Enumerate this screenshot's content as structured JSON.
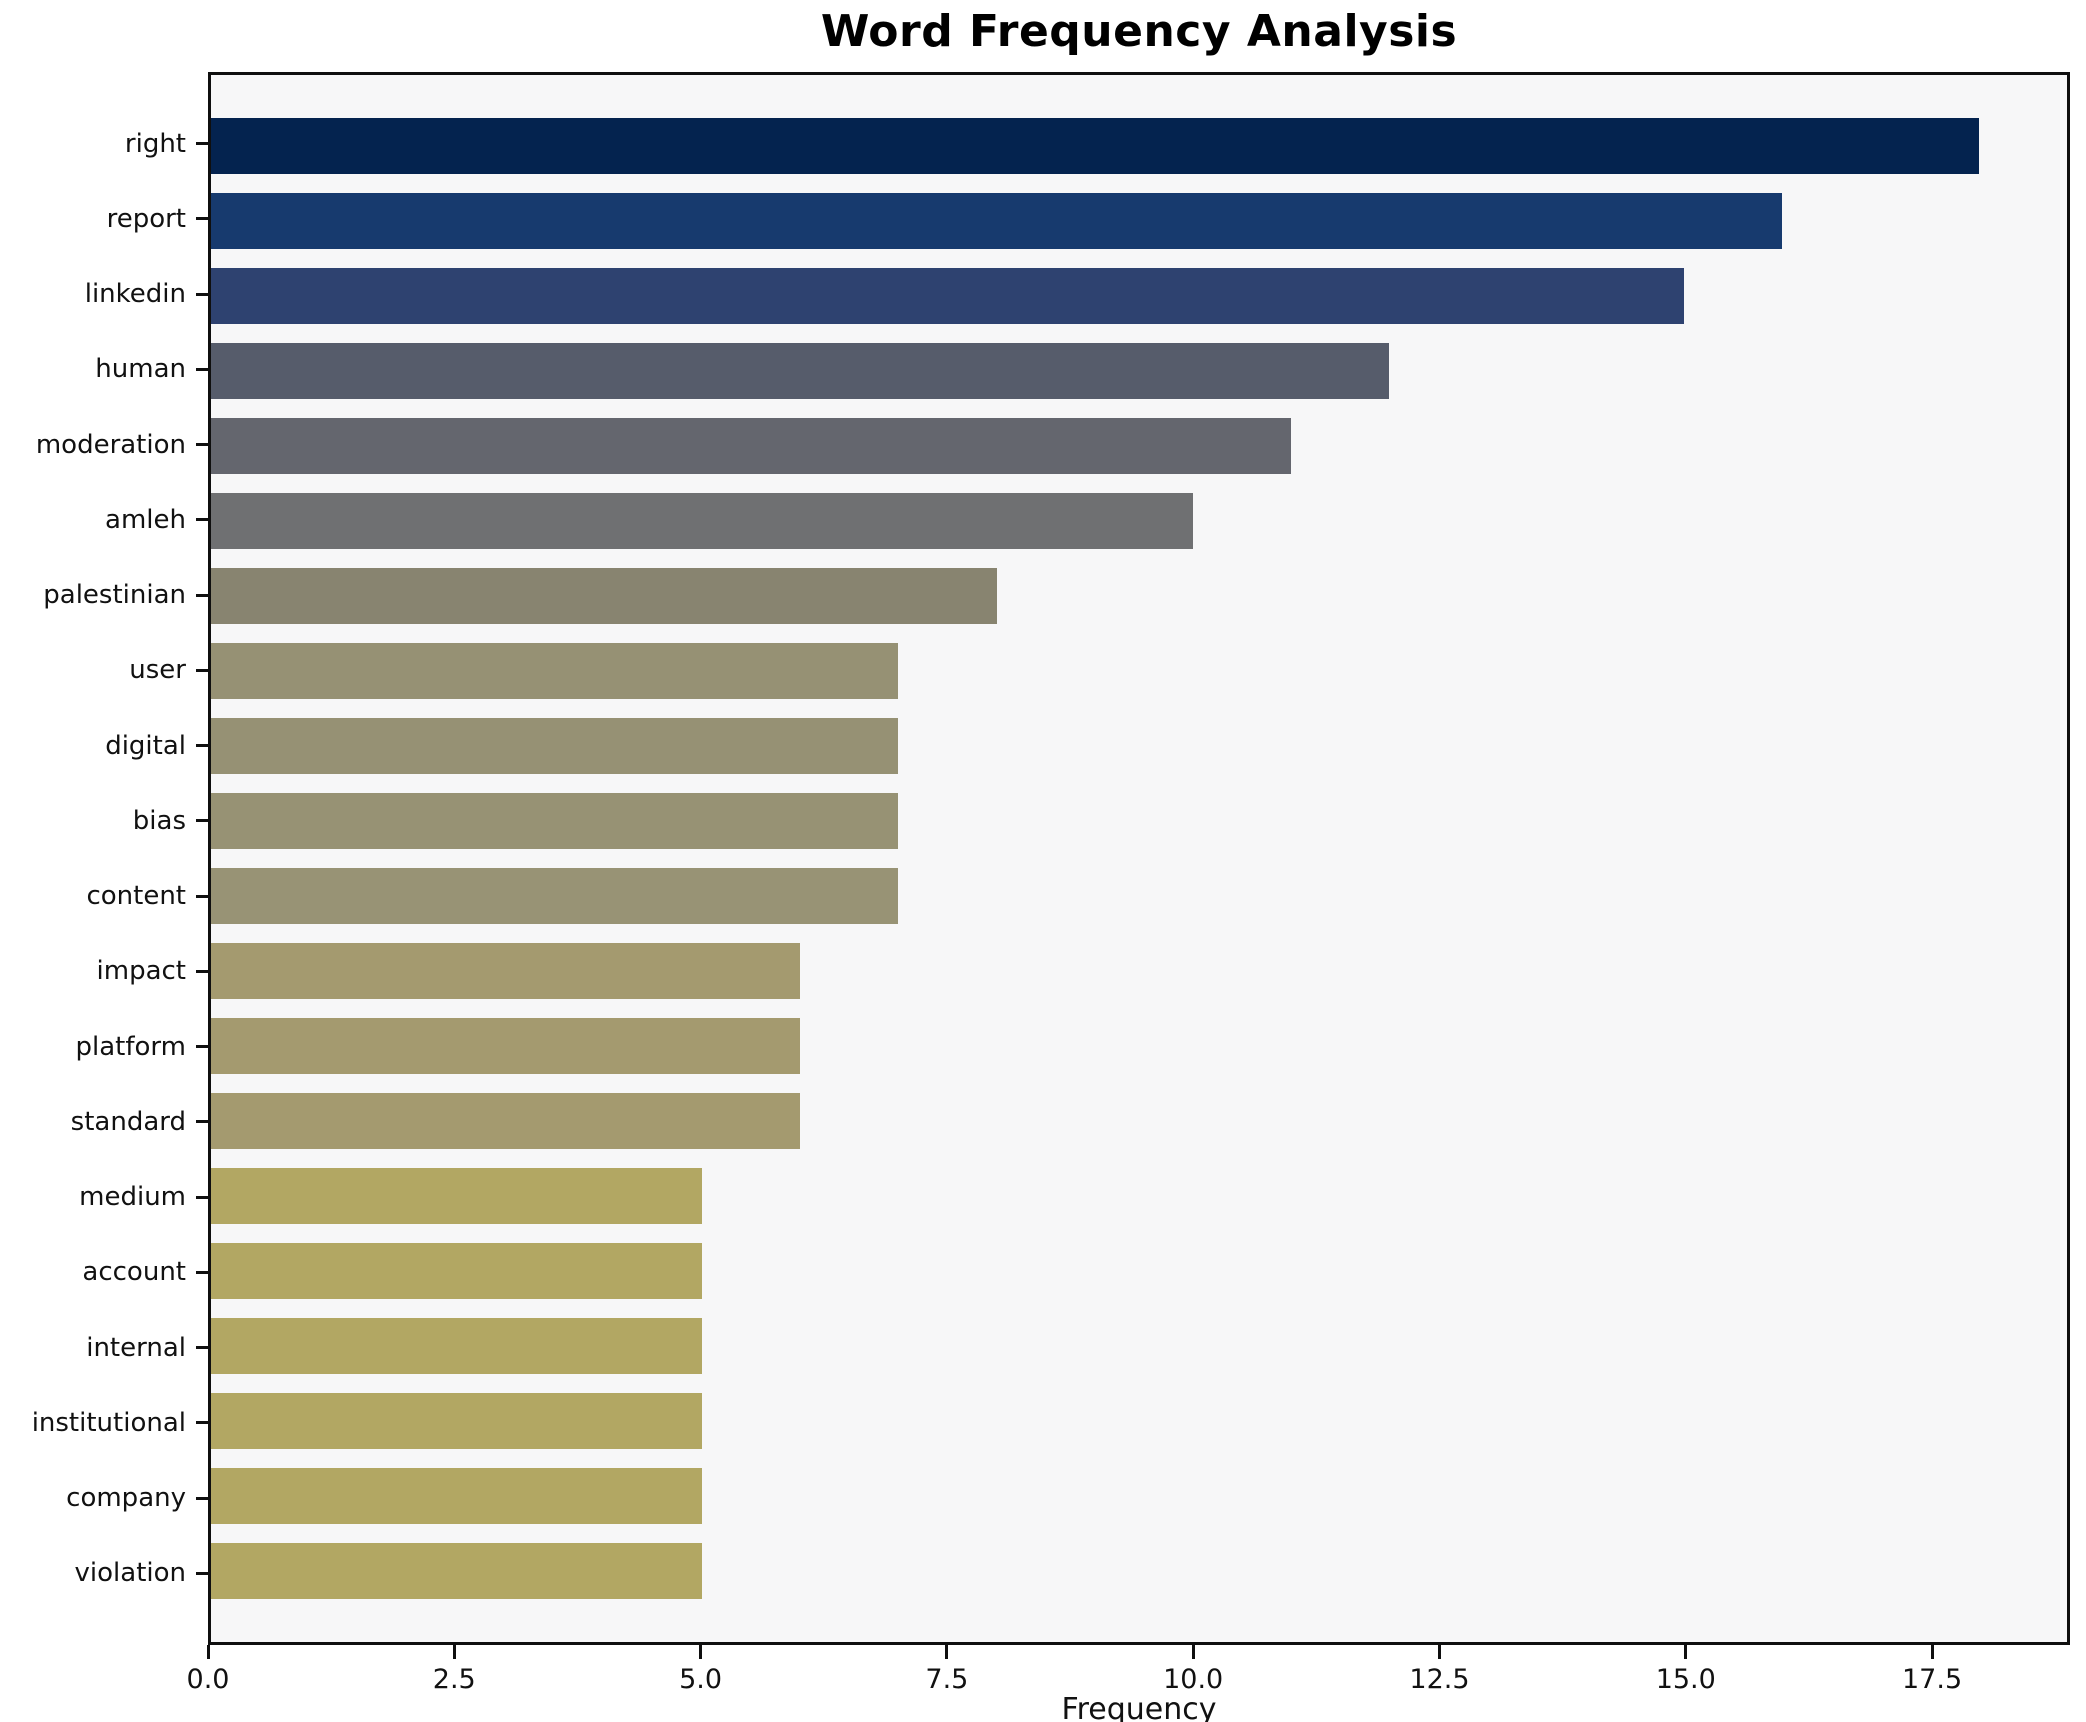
{
  "chart_data": {
    "type": "bar",
    "orientation": "horizontal",
    "title": "Word Frequency Analysis",
    "xlabel": "Frequency",
    "ylabel": "",
    "grid": false,
    "legend": null,
    "xlim": [
      0,
      18.9
    ],
    "x_ticks": [
      {
        "value": 0,
        "label": "0.0"
      },
      {
        "value": 2.5,
        "label": "2.5"
      },
      {
        "value": 5,
        "label": "5.0"
      },
      {
        "value": 7.5,
        "label": "7.5"
      },
      {
        "value": 10,
        "label": "10.0"
      },
      {
        "value": 12.5,
        "label": "12.5"
      },
      {
        "value": 15,
        "label": "15.0"
      },
      {
        "value": 17.5,
        "label": "17.5"
      }
    ],
    "categories": [
      "right",
      "report",
      "linkedin",
      "human",
      "moderation",
      "amleh",
      "palestinian",
      "user",
      "digital",
      "bias",
      "content",
      "impact",
      "platform",
      "standard",
      "medium",
      "account",
      "internal",
      "institutional",
      "company",
      "violation"
    ],
    "values": [
      18,
      16,
      15,
      12,
      11,
      10,
      8,
      7,
      7,
      7,
      7,
      6,
      6,
      6,
      5,
      5,
      5,
      5,
      5,
      5
    ],
    "bars": [
      {
        "label": "right",
        "value": 18,
        "color": "#04234f"
      },
      {
        "label": "report",
        "value": 16,
        "color": "#173a6e"
      },
      {
        "label": "linkedin",
        "value": 15,
        "color": "#2e4270"
      },
      {
        "label": "human",
        "value": 12,
        "color": "#565c6b"
      },
      {
        "label": "moderation",
        "value": 11,
        "color": "#64666e"
      },
      {
        "label": "amleh",
        "value": 10,
        "color": "#6f7072"
      },
      {
        "label": "palestinian",
        "value": 8,
        "color": "#888470"
      },
      {
        "label": "user",
        "value": 7,
        "color": "#969174"
      },
      {
        "label": "digital",
        "value": 7,
        "color": "#969174"
      },
      {
        "label": "bias",
        "value": 7,
        "color": "#979274"
      },
      {
        "label": "content",
        "value": 7,
        "color": "#989375"
      },
      {
        "label": "impact",
        "value": 6,
        "color": "#a49a6f"
      },
      {
        "label": "platform",
        "value": 6,
        "color": "#a49a6f"
      },
      {
        "label": "standard",
        "value": 6,
        "color": "#a49a6f"
      },
      {
        "label": "medium",
        "value": 5,
        "color": "#b2a763"
      },
      {
        "label": "account",
        "value": 5,
        "color": "#b2a763"
      },
      {
        "label": "internal",
        "value": 5,
        "color": "#b2a763"
      },
      {
        "label": "institutional",
        "value": 5,
        "color": "#b2a763"
      },
      {
        "label": "company",
        "value": 5,
        "color": "#b2a763"
      },
      {
        "label": "violation",
        "value": 5,
        "color": "#b2a763"
      }
    ],
    "colors": {
      "plot_background": "#f7f7f8",
      "figure_background": "#ffffff",
      "spine": "#0f0f0f",
      "text": "#111111"
    }
  }
}
